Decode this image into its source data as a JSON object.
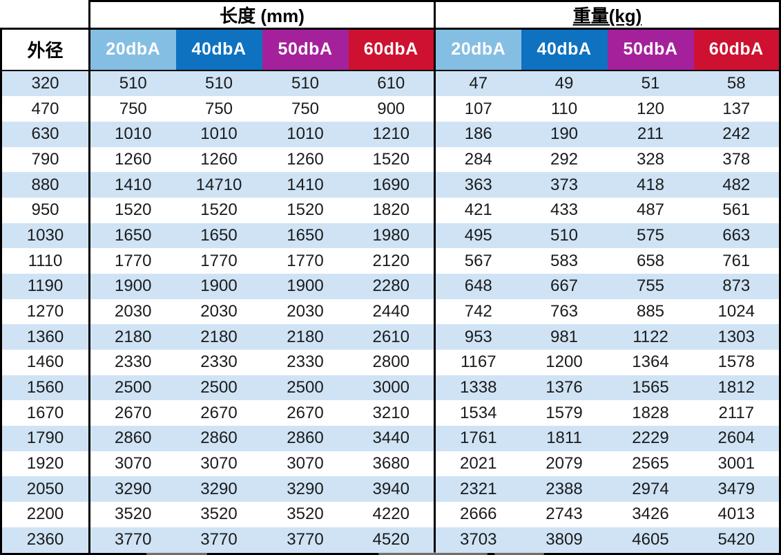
{
  "colors": {
    "header_20dba": "#85BEE3",
    "header_40dba": "#0E72C0",
    "header_50dba": "#A5219B",
    "header_60dba": "#CE1130",
    "row_alternate": "#CFE3F5",
    "border": "#000000",
    "header_text": "#FFFFFF",
    "body_text": "#1B1B1B"
  },
  "table": {
    "od_header": "外径",
    "groups": [
      {
        "label": "长度 (mm)"
      },
      {
        "label": "重量(kg)"
      }
    ],
    "sub_headers": [
      "20dbA",
      "40dbA",
      "50dbA",
      "60dbA"
    ],
    "rows": [
      {
        "od": "320",
        "length": [
          "510",
          "510",
          "510",
          "610"
        ],
        "weight": [
          "47",
          "49",
          "51",
          "58"
        ]
      },
      {
        "od": "470",
        "length": [
          "750",
          "750",
          "750",
          "900"
        ],
        "weight": [
          "107",
          "110",
          "120",
          "137"
        ]
      },
      {
        "od": "630",
        "length": [
          "1010",
          "1010",
          "1010",
          "1210"
        ],
        "weight": [
          "186",
          "190",
          "211",
          "242"
        ]
      },
      {
        "od": "790",
        "length": [
          "1260",
          "1260",
          "1260",
          "1520"
        ],
        "weight": [
          "284",
          "292",
          "328",
          "378"
        ]
      },
      {
        "od": "880",
        "length": [
          "1410",
          "14710",
          "1410",
          "1690"
        ],
        "weight": [
          "363",
          "373",
          "418",
          "482"
        ]
      },
      {
        "od": "950",
        "length": [
          "1520",
          "1520",
          "1520",
          "1820"
        ],
        "weight": [
          "421",
          "433",
          "487",
          "561"
        ]
      },
      {
        "od": "1030",
        "length": [
          "1650",
          "1650",
          "1650",
          "1980"
        ],
        "weight": [
          "495",
          "510",
          "575",
          "663"
        ]
      },
      {
        "od": "1110",
        "length": [
          "1770",
          "1770",
          "1770",
          "2120"
        ],
        "weight": [
          "567",
          "583",
          "658",
          "761"
        ]
      },
      {
        "od": "1190",
        "length": [
          "1900",
          "1900",
          "1900",
          "2280"
        ],
        "weight": [
          "648",
          "667",
          "755",
          "873"
        ]
      },
      {
        "od": "1270",
        "length": [
          "2030",
          "2030",
          "2030",
          "2440"
        ],
        "weight": [
          "742",
          "763",
          "885",
          "1024"
        ]
      },
      {
        "od": "1360",
        "length": [
          "2180",
          "2180",
          "2180",
          "2610"
        ],
        "weight": [
          "953",
          "981",
          "1122",
          "1303"
        ]
      },
      {
        "od": "1460",
        "length": [
          "2330",
          "2330",
          "2330",
          "2800"
        ],
        "weight": [
          "1167",
          "1200",
          "1364",
          "1578"
        ]
      },
      {
        "od": "1560",
        "length": [
          "2500",
          "2500",
          "2500",
          "3000"
        ],
        "weight": [
          "1338",
          "1376",
          "1565",
          "1812"
        ]
      },
      {
        "od": "1670",
        "length": [
          "2670",
          "2670",
          "2670",
          "3210"
        ],
        "weight": [
          "1534",
          "1579",
          "1828",
          "2117"
        ]
      },
      {
        "od": "1790",
        "length": [
          "2860",
          "2860",
          "2860",
          "3440"
        ],
        "weight": [
          "1761",
          "1811",
          "2229",
          "2604"
        ]
      },
      {
        "od": "1920",
        "length": [
          "3070",
          "3070",
          "3070",
          "3680"
        ],
        "weight": [
          "2021",
          "2079",
          "2565",
          "3001"
        ]
      },
      {
        "od": "2050",
        "length": [
          "3290",
          "3290",
          "3290",
          "3940"
        ],
        "weight": [
          "2321",
          "2388",
          "2974",
          "3479"
        ]
      },
      {
        "od": "2200",
        "length": [
          "3520",
          "3520",
          "3520",
          "4220"
        ],
        "weight": [
          "2666",
          "2743",
          "3426",
          "4013"
        ]
      },
      {
        "od": "2360",
        "length": [
          "3770",
          "3770",
          "3770",
          "4520"
        ],
        "weight": [
          "3703",
          "3809",
          "4605",
          "5420"
        ]
      }
    ]
  }
}
